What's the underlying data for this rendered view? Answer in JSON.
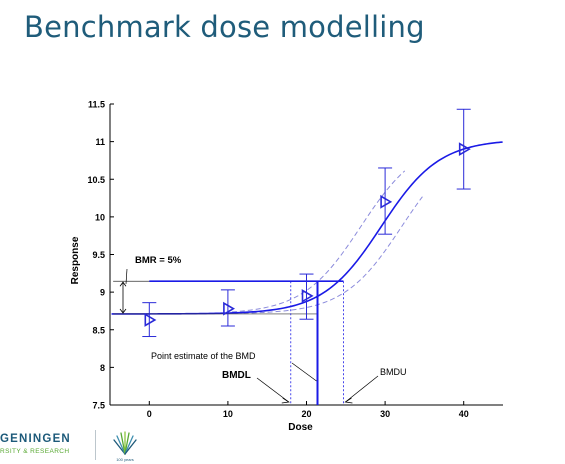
{
  "slide": {
    "title": "Benchmark dose modelling",
    "logo_line1": "GENINGEN",
    "logo_line2": "RSITY & RESEARCH",
    "emblem_caption": "100 years"
  },
  "colors": {
    "title": "#1f5c7a",
    "curve": "#1a1ae6",
    "confidence": "#8c8cdc",
    "marker": "#2a2ad8"
  },
  "chart_data": {
    "type": "scatter",
    "xlabel": "Dose",
    "ylabel": "Response",
    "xlim": [
      -5,
      45
    ],
    "ylim": [
      7.5,
      11.5
    ],
    "x_ticks": [
      0,
      10,
      20,
      30,
      40
    ],
    "x_tick_labels": [
      "0",
      "10",
      "20",
      "30",
      "40"
    ],
    "y_ticks": [
      7.5,
      8,
      8.5,
      9,
      9.5,
      10,
      10.5,
      11,
      11.5
    ],
    "y_tick_labels": [
      "7.5",
      "8",
      "8.5",
      "9",
      "9.5",
      "10",
      "10.5",
      "11",
      "11.5"
    ],
    "points": [
      {
        "x": 0,
        "y": 8.63,
        "err_low": 8.41,
        "err_high": 8.86
      },
      {
        "x": 10,
        "y": 8.78,
        "err_low": 8.55,
        "err_high": 9.03
      },
      {
        "x": 20,
        "y": 8.95,
        "err_low": 8.64,
        "err_high": 9.24
      },
      {
        "x": 30,
        "y": 10.2,
        "err_low": 9.77,
        "err_high": 10.65
      },
      {
        "x": 40,
        "y": 10.9,
        "err_low": 10.37,
        "err_high": 11.43
      }
    ],
    "background_level": 8.71,
    "bmr_level": 9.145,
    "bmd": 21.4,
    "bmdl": 18.0,
    "bmdu": 24.7,
    "annotations": {
      "bmr": "BMR = 5%",
      "point_estimate": "Point estimate of the BMD",
      "bmdl": "BMDL",
      "bmdu": "BMDU"
    }
  }
}
